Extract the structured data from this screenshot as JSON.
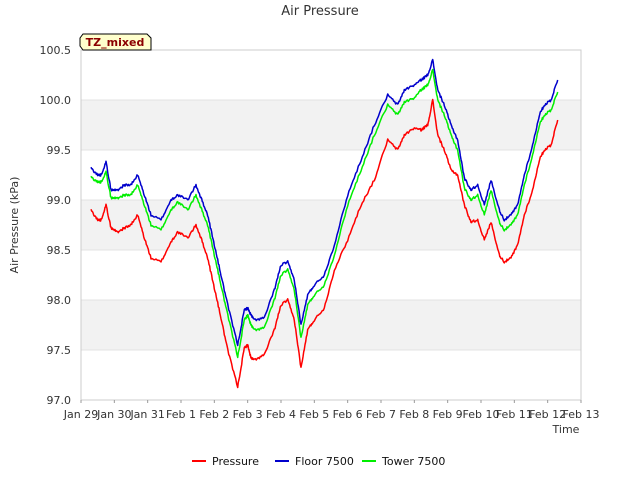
{
  "chart_data": {
    "type": "line",
    "title": "Air Pressure",
    "xlabel": "Time",
    "ylabel": "Air Pressure (kPa)",
    "annotation": "TZ_mixed",
    "ylim": [
      97.0,
      100.5
    ],
    "xlim": [
      0,
      15
    ],
    "y_ticks": [
      97.0,
      97.5,
      98.0,
      98.5,
      99.0,
      99.5,
      100.0,
      100.5
    ],
    "y_tick_labels": [
      "97.0",
      "97.5",
      "98.0",
      "98.5",
      "99.0",
      "99.5",
      "100.0",
      "100.5"
    ],
    "x_ticks": [
      0,
      1,
      2,
      3,
      4,
      5,
      6,
      7,
      8,
      9,
      10,
      11,
      12,
      13,
      14,
      15
    ],
    "x_tick_labels": [
      "Jan 29",
      "Jan 30",
      "Jan 31",
      "Feb 1",
      "Feb 2",
      "Feb 3",
      "Feb 4",
      "Feb 5",
      "Feb 6",
      "Feb 7",
      "Feb 8",
      "Feb 9",
      "Feb 10",
      "Feb 11",
      "Feb 12",
      "Feb 13"
    ],
    "x_unit": "days since Jan 29",
    "legend_position": "bottom-center",
    "grid": "horizontal bands",
    "series": [
      {
        "name": "Pressure",
        "color": "#ff0000",
        "x": [
          0.3,
          0.5,
          0.6,
          0.75,
          0.9,
          1.1,
          1.3,
          1.5,
          1.7,
          1.9,
          2.1,
          2.4,
          2.7,
          2.9,
          3.2,
          3.45,
          3.6,
          3.8,
          4.0,
          4.2,
          4.4,
          4.7,
          4.9,
          5.0,
          5.1,
          5.2,
          5.5,
          5.8,
          6.0,
          6.2,
          6.4,
          6.6,
          6.8,
          7.0,
          7.3,
          7.6,
          8.0,
          8.4,
          8.8,
          9.2,
          9.5,
          9.7,
          10.0,
          10.2,
          10.4,
          10.55,
          10.7,
          10.9,
          11.1,
          11.3,
          11.5,
          11.7,
          11.9,
          12.1,
          12.3,
          12.55,
          12.7,
          12.9,
          13.1,
          13.3,
          13.55,
          13.75,
          13.9,
          14.1,
          14.3
        ],
        "y": [
          98.9,
          98.8,
          98.8,
          98.95,
          98.72,
          98.68,
          98.72,
          98.75,
          98.85,
          98.62,
          98.42,
          98.38,
          98.58,
          98.68,
          98.62,
          98.75,
          98.62,
          98.42,
          98.12,
          97.82,
          97.5,
          97.13,
          97.52,
          97.55,
          97.42,
          97.4,
          97.45,
          97.7,
          97.95,
          98.0,
          97.8,
          97.32,
          97.7,
          97.8,
          97.92,
          98.3,
          98.6,
          98.95,
          99.2,
          99.6,
          99.5,
          99.65,
          99.72,
          99.7,
          99.75,
          100.0,
          99.65,
          99.5,
          99.3,
          99.25,
          98.95,
          98.78,
          98.8,
          98.6,
          98.78,
          98.45,
          98.38,
          98.42,
          98.55,
          98.85,
          99.1,
          99.4,
          99.5,
          99.55,
          99.8
        ]
      },
      {
        "name": "Floor 7500",
        "color": "#0000cc",
        "x": [
          0.3,
          0.5,
          0.6,
          0.75,
          0.9,
          1.1,
          1.3,
          1.5,
          1.7,
          1.9,
          2.1,
          2.4,
          2.7,
          2.9,
          3.2,
          3.45,
          3.6,
          3.8,
          4.0,
          4.2,
          4.4,
          4.7,
          4.9,
          5.0,
          5.1,
          5.2,
          5.5,
          5.8,
          6.0,
          6.2,
          6.4,
          6.6,
          6.8,
          7.0,
          7.3,
          7.6,
          8.0,
          8.4,
          8.8,
          9.2,
          9.5,
          9.7,
          10.0,
          10.2,
          10.4,
          10.55,
          10.7,
          10.9,
          11.1,
          11.3,
          11.5,
          11.7,
          11.9,
          12.1,
          12.3,
          12.55,
          12.7,
          12.9,
          13.1,
          13.3,
          13.55,
          13.75,
          13.9,
          14.1,
          14.3
        ],
        "y": [
          99.32,
          99.25,
          99.25,
          99.38,
          99.1,
          99.1,
          99.15,
          99.15,
          99.25,
          99.05,
          98.85,
          98.8,
          99.0,
          99.05,
          99.0,
          99.15,
          99.02,
          98.85,
          98.55,
          98.25,
          97.95,
          97.55,
          97.9,
          97.92,
          97.85,
          97.8,
          97.82,
          98.1,
          98.35,
          98.38,
          98.2,
          97.75,
          98.05,
          98.15,
          98.25,
          98.55,
          99.05,
          99.4,
          99.75,
          100.05,
          99.95,
          100.1,
          100.15,
          100.2,
          100.25,
          100.4,
          100.1,
          99.95,
          99.75,
          99.6,
          99.22,
          99.1,
          99.15,
          98.95,
          99.2,
          98.9,
          98.8,
          98.85,
          98.95,
          99.25,
          99.55,
          99.85,
          99.95,
          100.0,
          100.2
        ]
      },
      {
        "name": "Tower 7500",
        "color": "#00ee00",
        "x": [
          0.3,
          0.5,
          0.6,
          0.75,
          0.9,
          1.1,
          1.3,
          1.5,
          1.7,
          1.9,
          2.1,
          2.4,
          2.7,
          2.9,
          3.2,
          3.45,
          3.6,
          3.8,
          4.0,
          4.2,
          4.4,
          4.7,
          4.9,
          5.0,
          5.1,
          5.2,
          5.5,
          5.8,
          6.0,
          6.2,
          6.4,
          6.6,
          6.8,
          7.0,
          7.3,
          7.6,
          8.0,
          8.4,
          8.8,
          9.2,
          9.5,
          9.7,
          10.0,
          10.2,
          10.4,
          10.55,
          10.7,
          10.9,
          11.1,
          11.3,
          11.5,
          11.7,
          11.9,
          12.1,
          12.3,
          12.55,
          12.7,
          12.9,
          13.1,
          13.3,
          13.55,
          13.75,
          13.9,
          14.1,
          14.3
        ],
        "y": [
          99.23,
          99.18,
          99.18,
          99.28,
          99.02,
          99.02,
          99.05,
          99.05,
          99.15,
          98.95,
          98.75,
          98.7,
          98.9,
          98.98,
          98.9,
          99.05,
          98.92,
          98.75,
          98.45,
          98.15,
          97.85,
          97.43,
          97.8,
          97.85,
          97.75,
          97.7,
          97.72,
          98.0,
          98.25,
          98.3,
          98.1,
          97.62,
          97.95,
          98.05,
          98.15,
          98.45,
          98.95,
          99.3,
          99.65,
          99.95,
          99.85,
          99.98,
          100.02,
          100.1,
          100.15,
          100.3,
          100.0,
          99.85,
          99.65,
          99.5,
          99.12,
          99.0,
          99.05,
          98.85,
          99.1,
          98.78,
          98.7,
          98.75,
          98.85,
          99.15,
          99.45,
          99.75,
          99.85,
          99.9,
          100.08
        ]
      }
    ]
  }
}
